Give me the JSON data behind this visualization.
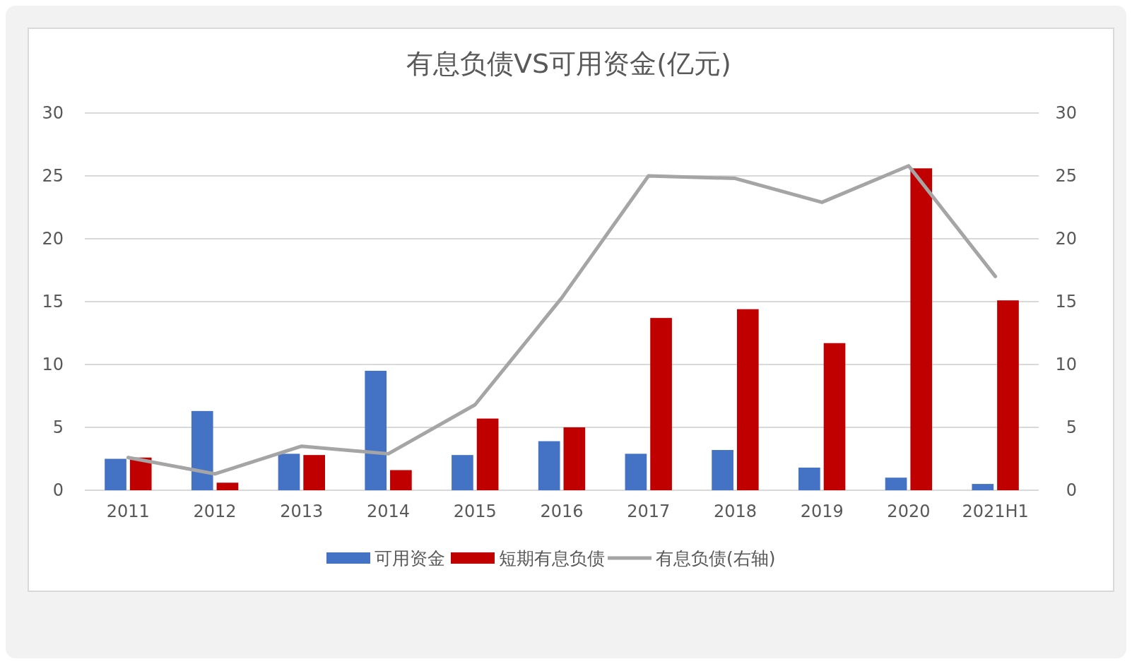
{
  "chart_data": {
    "type": "bar",
    "title": "有息负债VS可用资金(亿元)",
    "categories": [
      "2011",
      "2012",
      "2013",
      "2014",
      "2015",
      "2016",
      "2017",
      "2018",
      "2019",
      "2020",
      "2021H1"
    ],
    "series": [
      {
        "name": "可用资金",
        "color": "#4472c4",
        "values": [
          2.5,
          6.3,
          2.9,
          9.5,
          2.8,
          3.9,
          2.9,
          3.2,
          1.8,
          1.0,
          0.5
        ]
      },
      {
        "name": "短期有息负债",
        "color": "#c00000",
        "values": [
          2.6,
          0.6,
          2.8,
          1.6,
          5.7,
          5.0,
          13.7,
          14.4,
          11.7,
          25.6,
          15.1
        ]
      },
      {
        "name": "有息负债(右轴)",
        "color": "#a5a5a5",
        "type": "line",
        "values": [
          2.6,
          1.3,
          3.5,
          2.9,
          6.8,
          15.3,
          25.0,
          24.8,
          22.9,
          25.8,
          17.0
        ]
      }
    ],
    "ylim": [
      0,
      30
    ],
    "yticks": [
      0,
      5,
      10,
      15,
      20,
      25,
      30
    ],
    "y2lim": [
      0,
      30
    ],
    "y2ticks": [
      0,
      5,
      10,
      15,
      20,
      25,
      30
    ],
    "grid": "y",
    "legend": "bottom",
    "marker": "none",
    "line_style": "solid"
  }
}
